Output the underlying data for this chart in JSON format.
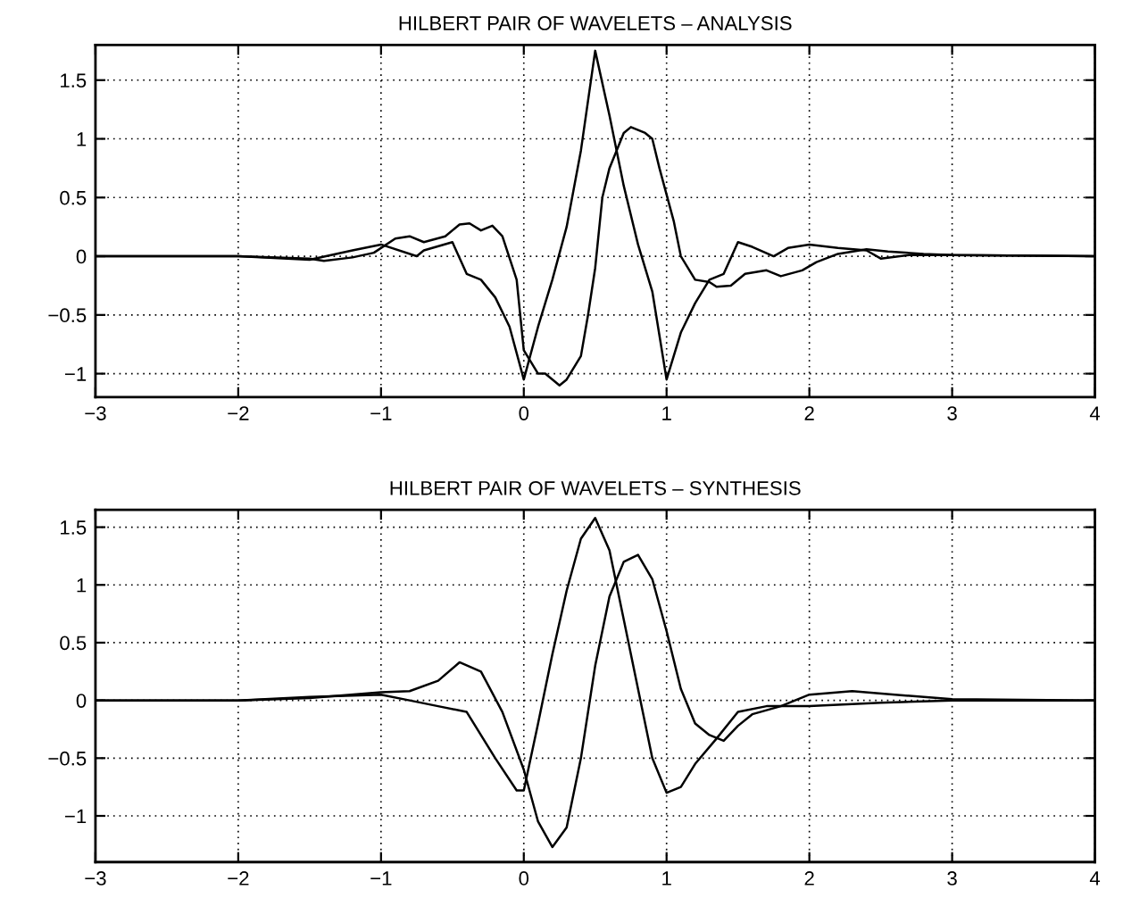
{
  "chart_data": [
    {
      "type": "line",
      "title": "HILBERT PAIR OF WAVELETS – ANALYSIS",
      "grid": true,
      "line_style": "solid",
      "xlim": [
        -3,
        4
      ],
      "ylim": [
        -1.2,
        1.8
      ],
      "xticks": [
        -3,
        -2,
        -1,
        0,
        1,
        2,
        3,
        4
      ],
      "yticks": [
        -1,
        -0.5,
        0,
        0.5,
        1,
        1.5
      ],
      "series": [
        {
          "color": "#000000",
          "x": [
            -3,
            -2,
            -1.5,
            -1.2,
            -1,
            -0.75,
            -0.7,
            -0.5,
            -0.4,
            -0.3,
            -0.2,
            -0.1,
            0,
            0.1,
            0.2,
            0.3,
            0.4,
            0.5,
            0.6,
            0.7,
            0.8,
            0.9,
            1.0,
            1.1,
            1.2,
            1.3,
            1.4,
            1.5,
            1.6,
            1.75,
            1.85,
            2.0,
            2.2,
            2.4,
            2.5,
            2.7,
            3,
            4
          ],
          "values": [
            0,
            0,
            -0.03,
            0.05,
            0.1,
            0.0,
            0.05,
            0.12,
            -0.15,
            -0.2,
            -0.35,
            -0.6,
            -1.05,
            -0.6,
            -0.2,
            0.25,
            0.9,
            1.75,
            1.2,
            0.6,
            0.1,
            -0.3,
            -1.05,
            -0.65,
            -0.4,
            -0.2,
            -0.15,
            0.12,
            0.08,
            0.0,
            0.07,
            0.1,
            0.07,
            0.05,
            -0.02,
            0.01,
            0.01,
            0
          ]
        },
        {
          "color": "#000000",
          "x": [
            -3,
            -2,
            -1.5,
            -1.4,
            -1.2,
            -1.05,
            -0.9,
            -0.8,
            -0.7,
            -0.55,
            -0.45,
            -0.38,
            -0.3,
            -0.22,
            -0.15,
            -0.05,
            0.0,
            0.1,
            0.15,
            0.25,
            0.3,
            0.4,
            0.45,
            0.5,
            0.55,
            0.6,
            0.7,
            0.75,
            0.85,
            0.9,
            0.95,
            1.05,
            1.1,
            1.2,
            1.3,
            1.35,
            1.45,
            1.55,
            1.7,
            1.8,
            1.95,
            2.05,
            2.2,
            2.4,
            2.55,
            2.8,
            3,
            4
          ],
          "values": [
            0,
            0,
            -0.02,
            -0.04,
            -0.01,
            0.03,
            0.15,
            0.17,
            0.12,
            0.17,
            0.27,
            0.28,
            0.22,
            0.26,
            0.17,
            -0.2,
            -0.8,
            -1.0,
            -1.0,
            -1.1,
            -1.05,
            -0.85,
            -0.5,
            -0.1,
            0.5,
            0.75,
            1.05,
            1.1,
            1.05,
            1.0,
            0.75,
            0.3,
            0.0,
            -0.2,
            -0.22,
            -0.26,
            -0.25,
            -0.15,
            -0.12,
            -0.17,
            -0.12,
            -0.05,
            0.02,
            0.06,
            0.04,
            0.02,
            0.01,
            0
          ]
        }
      ]
    },
    {
      "type": "line",
      "title": "HILBERT PAIR OF WAVELETS – SYNTHESIS",
      "grid": true,
      "line_style": "solid",
      "xlim": [
        -3,
        4
      ],
      "ylim": [
        -1.4,
        1.65
      ],
      "xticks": [
        -3,
        -2,
        -1,
        0,
        1,
        2,
        3,
        4
      ],
      "yticks": [
        -1,
        -0.5,
        0,
        0.5,
        1,
        1.5
      ],
      "series": [
        {
          "color": "#000000",
          "x": [
            -3,
            -2,
            -1.5,
            -1,
            -0.8,
            -0.6,
            -0.4,
            -0.2,
            -0.05,
            0,
            0.1,
            0.2,
            0.3,
            0.4,
            0.5,
            0.6,
            0.7,
            0.8,
            0.9,
            1.0,
            1.1,
            1.2,
            1.35,
            1.5,
            1.7,
            2,
            2.5,
            3,
            4
          ],
          "values": [
            0,
            0,
            0.03,
            0.05,
            0.0,
            -0.05,
            -0.1,
            -0.5,
            -0.78,
            -0.78,
            -0.2,
            0.4,
            0.95,
            1.4,
            1.58,
            1.3,
            0.7,
            0.1,
            -0.5,
            -0.8,
            -0.75,
            -0.55,
            -0.33,
            -0.1,
            -0.05,
            -0.05,
            -0.02,
            0,
            0
          ]
        },
        {
          "color": "#000000",
          "x": [
            -3,
            -2,
            -1.5,
            -1,
            -0.8,
            -0.6,
            -0.45,
            -0.3,
            -0.15,
            0,
            0.1,
            0.2,
            0.3,
            0.4,
            0.5,
            0.6,
            0.7,
            0.8,
            0.9,
            1.0,
            1.1,
            1.2,
            1.3,
            1.4,
            1.5,
            1.6,
            1.8,
            2,
            2.3,
            2.6,
            3,
            4
          ],
          "values": [
            0,
            0,
            0.02,
            0.07,
            0.08,
            0.17,
            0.33,
            0.25,
            -0.1,
            -0.6,
            -1.05,
            -1.27,
            -1.1,
            -0.5,
            0.3,
            0.9,
            1.2,
            1.26,
            1.05,
            0.6,
            0.1,
            -0.2,
            -0.3,
            -0.35,
            -0.22,
            -0.12,
            -0.05,
            0.05,
            0.08,
            0.05,
            0.01,
            0
          ]
        }
      ]
    }
  ]
}
